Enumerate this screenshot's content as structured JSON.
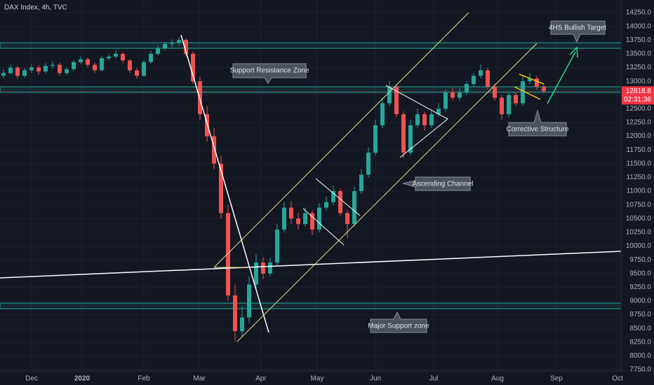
{
  "chart_data": {
    "type": "candlestick",
    "title": "DAX Index, 4h, TVC",
    "up_color": "#26a69a",
    "down_color": "#ef5350",
    "grid": true,
    "xlim": [
      -0.5,
      88
    ],
    "ylim": [
      7725,
      14480
    ],
    "xticks": [
      {
        "value": 4,
        "label": "Dec"
      },
      {
        "value": 11.2,
        "label": "2020"
      },
      {
        "value": 20,
        "label": "Feb"
      },
      {
        "value": 27.9,
        "label": "Mar"
      },
      {
        "value": 36.7,
        "label": "Apr"
      },
      {
        "value": 44.7,
        "label": "May"
      },
      {
        "value": 53,
        "label": "Jun"
      },
      {
        "value": 61.3,
        "label": "Jul"
      },
      {
        "value": 70.4,
        "label": "Aug"
      },
      {
        "value": 78.8,
        "label": "Sep"
      },
      {
        "value": 87.5,
        "label": "Oct"
      }
    ],
    "yticks": [
      {
        "value": 7750,
        "label": "7750.0"
      },
      {
        "value": 8000,
        "label": "8000.0"
      },
      {
        "value": 8250,
        "label": "8250.0"
      },
      {
        "value": 8500,
        "label": "8500.0"
      },
      {
        "value": 8750,
        "label": "8750.0"
      },
      {
        "value": 9000,
        "label": "9000.0"
      },
      {
        "value": 9250,
        "label": "9250.0"
      },
      {
        "value": 9500,
        "label": "9500.0"
      },
      {
        "value": 9750,
        "label": "9750.0"
      },
      {
        "value": 10000,
        "label": "10000.0"
      },
      {
        "value": 10250,
        "label": "10250.0"
      },
      {
        "value": 10500,
        "label": "10500.0"
      },
      {
        "value": 10750,
        "label": "10750.0"
      },
      {
        "value": 11000,
        "label": "11000.0"
      },
      {
        "value": 11250,
        "label": "11250.0"
      },
      {
        "value": 11500,
        "label": "11500.0"
      },
      {
        "value": 11750,
        "label": "11750.0"
      },
      {
        "value": 12000,
        "label": "12000.0"
      },
      {
        "value": 12250,
        "label": "12250.0"
      },
      {
        "value": 12500,
        "label": "12500.0"
      },
      {
        "value": 12750,
        "label": "12750.0"
      },
      {
        "value": 13000,
        "label": "13000.0"
      },
      {
        "value": 13250,
        "label": "13250.0"
      },
      {
        "value": 13500,
        "label": "13500.0"
      },
      {
        "value": 13750,
        "label": "13750.0"
      },
      {
        "value": 14000,
        "label": "14000.0"
      },
      {
        "value": 14250,
        "label": "14250.0"
      }
    ],
    "candles": [
      [
        13100,
        13220,
        13050,
        13150
      ],
      [
        13150,
        13300,
        13120,
        13250
      ],
      [
        13250,
        13280,
        13050,
        13100
      ],
      [
        13100,
        13240,
        13060,
        13200
      ],
      [
        13200,
        13310,
        13150,
        13250
      ],
      [
        13250,
        13290,
        13120,
        13180
      ],
      [
        13180,
        13330,
        13150,
        13280
      ],
      [
        13280,
        13360,
        13230,
        13300
      ],
      [
        13300,
        13340,
        13100,
        13150
      ],
      [
        13150,
        13260,
        13110,
        13220
      ],
      [
        13220,
        13390,
        13190,
        13350
      ],
      [
        13350,
        13450,
        13310,
        13400
      ],
      [
        13400,
        13430,
        13250,
        13300
      ],
      [
        13300,
        13340,
        13150,
        13200
      ],
      [
        13200,
        13460,
        13180,
        13420
      ],
      [
        13420,
        13490,
        13380,
        13450
      ],
      [
        13450,
        13560,
        13420,
        13500
      ],
      [
        13500,
        13530,
        13330,
        13380
      ],
      [
        13380,
        13410,
        13150,
        13200
      ],
      [
        13200,
        13240,
        13050,
        13100
      ],
      [
        13100,
        13390,
        13080,
        13350
      ],
      [
        13350,
        13550,
        13320,
        13500
      ],
      [
        13500,
        13650,
        13470,
        13600
      ],
      [
        13600,
        13720,
        13560,
        13680
      ],
      [
        13680,
        13760,
        13620,
        13700
      ],
      [
        13700,
        13800,
        13660,
        13750
      ],
      [
        13750,
        13780,
        13450,
        13500
      ],
      [
        13500,
        13540,
        12950,
        13000
      ],
      [
        13000,
        13080,
        12300,
        12400
      ],
      [
        12400,
        12550,
        11900,
        12000
      ],
      [
        12000,
        12150,
        11400,
        11500
      ],
      [
        11500,
        11650,
        10500,
        10600
      ],
      [
        10600,
        10750,
        9000,
        9100
      ],
      [
        9100,
        9300,
        8260,
        8450
      ],
      [
        8450,
        8900,
        8350,
        8700
      ],
      [
        8700,
        9450,
        8600,
        9300
      ],
      [
        9300,
        9850,
        9200,
        9700
      ],
      [
        9700,
        9800,
        9400,
        9500
      ],
      [
        9500,
        9780,
        9450,
        9700
      ],
      [
        9700,
        10400,
        9650,
        10300
      ],
      [
        10300,
        10800,
        10250,
        10700
      ],
      [
        10700,
        10820,
        10400,
        10500
      ],
      [
        10500,
        10600,
        10300,
        10400
      ],
      [
        10400,
        10700,
        10350,
        10600
      ],
      [
        10600,
        10650,
        10200,
        10300
      ],
      [
        10300,
        10780,
        10250,
        10700
      ],
      [
        10700,
        10900,
        10650,
        10800
      ],
      [
        10800,
        11100,
        10750,
        11000
      ],
      [
        11000,
        11050,
        10550,
        10600
      ],
      [
        10600,
        10650,
        10150,
        10400
      ],
      [
        10400,
        11080,
        10350,
        11000
      ],
      [
        11000,
        11400,
        10950,
        11300
      ],
      [
        11300,
        11800,
        11250,
        11700
      ],
      [
        11700,
        12300,
        11650,
        12200
      ],
      [
        12200,
        12700,
        12150,
        12600
      ],
      [
        12600,
        13000,
        12550,
        12900
      ],
      [
        12900,
        12950,
        12350,
        12400
      ],
      [
        12400,
        12450,
        11600,
        11700
      ],
      [
        11700,
        12300,
        11650,
        12200
      ],
      [
        12200,
        12500,
        12150,
        12400
      ],
      [
        12400,
        12450,
        12100,
        12200
      ],
      [
        12200,
        12480,
        12150,
        12400
      ],
      [
        12400,
        12600,
        12350,
        12500
      ],
      [
        12500,
        12850,
        12450,
        12800
      ],
      [
        12800,
        12880,
        12650,
        12700
      ],
      [
        12700,
        12870,
        12650,
        12800
      ],
      [
        12800,
        13000,
        12750,
        12950
      ],
      [
        12950,
        13150,
        12900,
        13100
      ],
      [
        13100,
        13300,
        13050,
        13200
      ],
      [
        13200,
        13250,
        12850,
        12900
      ],
      [
        12900,
        12950,
        12650,
        12700
      ],
      [
        12700,
        12750,
        12300,
        12400
      ],
      [
        12400,
        12800,
        12350,
        12750
      ],
      [
        12750,
        12800,
        12550,
        12600
      ],
      [
        12600,
        13100,
        12550,
        13000
      ],
      [
        13000,
        13150,
        12950,
        13050
      ],
      [
        13050,
        13100,
        12850,
        12900
      ],
      [
        12900,
        12950,
        12780,
        12818.8
      ]
    ],
    "countdown": "02:31:36",
    "annotations": {
      "sr_zone": "Support Resistance Zone",
      "target": "4HS Bullish Target",
      "corrective": "Corrective Structure",
      "channel": "Ascending Channel",
      "support": "Major Support zone"
    }
  }
}
